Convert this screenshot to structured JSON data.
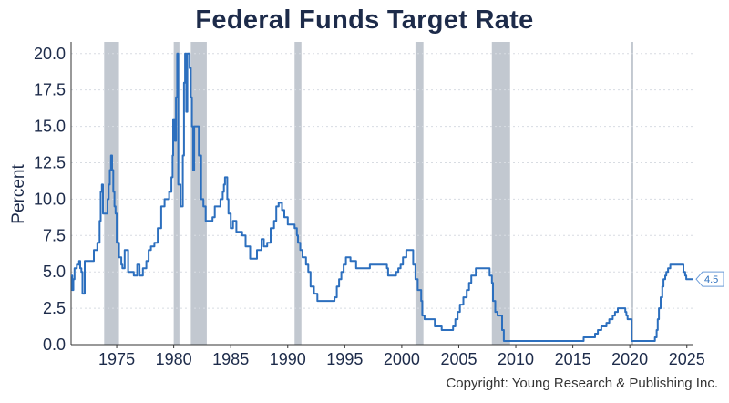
{
  "chart_data": {
    "type": "line",
    "title": "Federal Funds Target Rate",
    "ylabel": "Percent",
    "xlabel": "",
    "copyright": "Copyright: Young Research & Publishing Inc.",
    "xlim": [
      1971.0,
      2025.5
    ],
    "ylim": [
      0,
      20.8
    ],
    "x_ticks": [
      1975,
      1980,
      1985,
      1990,
      1995,
      2000,
      2005,
      2010,
      2015,
      2020,
      2025
    ],
    "y_ticks": [
      0,
      2.5,
      5,
      7.5,
      10,
      12.5,
      15,
      17.5,
      20
    ],
    "y_tick_labels": [
      "0.0",
      "2.5",
      "5.0",
      "7.5",
      "10.0",
      "12.5",
      "15.0",
      "17.5",
      "20.0"
    ],
    "grid": "horizontal dotted",
    "last_value_label": "4.5",
    "colors": {
      "line": "#2c6fbe",
      "recession": "#c2c8d0",
      "axis_text": "#1d2b4a",
      "title": "#1d2b4a"
    },
    "recessions": [
      [
        1973.9,
        1975.2
      ],
      [
        1980.0,
        1980.5
      ],
      [
        1981.5,
        1982.9
      ],
      [
        1990.6,
        1991.2
      ],
      [
        2001.2,
        2001.9
      ],
      [
        2007.9,
        2009.5
      ],
      [
        2020.1,
        2020.3
      ]
    ],
    "series": [
      {
        "type": "step",
        "points": [
          [
            1971.0,
            4.75
          ],
          [
            1971.1,
            3.75
          ],
          [
            1971.2,
            4.5
          ],
          [
            1971.3,
            5.25
          ],
          [
            1971.5,
            5.5
          ],
          [
            1971.7,
            5.75
          ],
          [
            1971.8,
            5.25
          ],
          [
            1971.9,
            5.0
          ],
          [
            1972.0,
            3.5
          ],
          [
            1972.2,
            5.75
          ],
          [
            1972.8,
            5.75
          ],
          [
            1973.0,
            6.5
          ],
          [
            1973.3,
            7.0
          ],
          [
            1973.5,
            8.5
          ],
          [
            1973.6,
            10.5
          ],
          [
            1973.7,
            11.0
          ],
          [
            1973.8,
            9.0
          ],
          [
            1974.2,
            10.0
          ],
          [
            1974.3,
            11.0
          ],
          [
            1974.4,
            12.0
          ],
          [
            1974.5,
            13.0
          ],
          [
            1974.6,
            12.0
          ],
          [
            1974.7,
            10.5
          ],
          [
            1974.8,
            9.5
          ],
          [
            1974.9,
            9.0
          ],
          [
            1975.0,
            7.0
          ],
          [
            1975.2,
            6.0
          ],
          [
            1975.4,
            5.5
          ],
          [
            1975.5,
            5.25
          ],
          [
            1975.7,
            6.5
          ],
          [
            1976.0,
            5.0
          ],
          [
            1976.5,
            4.75
          ],
          [
            1976.8,
            5.5
          ],
          [
            1977.0,
            4.75
          ],
          [
            1977.3,
            5.25
          ],
          [
            1977.6,
            5.75
          ],
          [
            1977.8,
            6.5
          ],
          [
            1978.0,
            6.75
          ],
          [
            1978.3,
            7.0
          ],
          [
            1978.6,
            8.0
          ],
          [
            1978.9,
            9.5
          ],
          [
            1979.2,
            10.0
          ],
          [
            1979.6,
            10.5
          ],
          [
            1979.8,
            11.5
          ],
          [
            1979.9,
            13.0
          ],
          [
            1979.95,
            15.5
          ],
          [
            1980.1,
            14.0
          ],
          [
            1980.2,
            17.0
          ],
          [
            1980.3,
            20.0
          ],
          [
            1980.4,
            11.0
          ],
          [
            1980.6,
            9.5
          ],
          [
            1980.8,
            13.0
          ],
          [
            1980.9,
            18.0
          ],
          [
            1981.0,
            20.0
          ],
          [
            1981.1,
            16.0
          ],
          [
            1981.2,
            20.0
          ],
          [
            1981.4,
            19.0
          ],
          [
            1981.5,
            17.0
          ],
          [
            1981.6,
            15.0
          ],
          [
            1981.7,
            12.0
          ],
          [
            1981.8,
            15.0
          ],
          [
            1982.2,
            13.0
          ],
          [
            1982.4,
            10.0
          ],
          [
            1982.6,
            9.5
          ],
          [
            1982.8,
            8.5
          ],
          [
            1983.4,
            8.75
          ],
          [
            1983.6,
            9.5
          ],
          [
            1984.1,
            10.0
          ],
          [
            1984.3,
            10.5
          ],
          [
            1984.4,
            11.0
          ],
          [
            1984.5,
            11.5
          ],
          [
            1984.7,
            10.0
          ],
          [
            1984.8,
            9.0
          ],
          [
            1985.0,
            8.0
          ],
          [
            1985.2,
            8.5
          ],
          [
            1985.5,
            7.75
          ],
          [
            1986.0,
            7.5
          ],
          [
            1986.3,
            6.75
          ],
          [
            1986.7,
            5.9
          ],
          [
            1987.3,
            6.5
          ],
          [
            1987.7,
            7.25
          ],
          [
            1987.9,
            6.75
          ],
          [
            1988.2,
            7.0
          ],
          [
            1988.5,
            8.0
          ],
          [
            1988.8,
            8.5
          ],
          [
            1989.0,
            9.5
          ],
          [
            1989.2,
            9.75
          ],
          [
            1989.5,
            9.25
          ],
          [
            1989.7,
            8.75
          ],
          [
            1990.0,
            8.25
          ],
          [
            1990.6,
            8.0
          ],
          [
            1990.8,
            7.5
          ],
          [
            1990.9,
            7.0
          ],
          [
            1991.1,
            6.5
          ],
          [
            1991.3,
            6.0
          ],
          [
            1991.6,
            5.5
          ],
          [
            1991.8,
            5.0
          ],
          [
            1992.0,
            4.0
          ],
          [
            1992.3,
            3.5
          ],
          [
            1992.6,
            3.0
          ],
          [
            1994.1,
            3.25
          ],
          [
            1994.3,
            4.0
          ],
          [
            1994.5,
            4.5
          ],
          [
            1994.7,
            5.0
          ],
          [
            1994.9,
            5.5
          ],
          [
            1995.1,
            6.0
          ],
          [
            1995.5,
            5.75
          ],
          [
            1996.0,
            5.25
          ],
          [
            1997.2,
            5.5
          ],
          [
            1998.7,
            5.25
          ],
          [
            1998.8,
            4.75
          ],
          [
            1999.5,
            5.0
          ],
          [
            1999.7,
            5.25
          ],
          [
            1999.9,
            5.5
          ],
          [
            2000.1,
            6.0
          ],
          [
            2000.4,
            6.5
          ],
          [
            2001.0,
            5.5
          ],
          [
            2001.2,
            4.5
          ],
          [
            2001.4,
            3.75
          ],
          [
            2001.7,
            3.0
          ],
          [
            2001.8,
            2.0
          ],
          [
            2002.0,
            1.75
          ],
          [
            2002.9,
            1.25
          ],
          [
            2003.5,
            1.0
          ],
          [
            2004.5,
            1.25
          ],
          [
            2004.7,
            1.75
          ],
          [
            2004.9,
            2.25
          ],
          [
            2005.1,
            2.75
          ],
          [
            2005.4,
            3.25
          ],
          [
            2005.7,
            3.75
          ],
          [
            2005.9,
            4.25
          ],
          [
            2006.1,
            4.75
          ],
          [
            2006.5,
            5.25
          ],
          [
            2007.7,
            4.75
          ],
          [
            2007.9,
            4.25
          ],
          [
            2008.0,
            3.0
          ],
          [
            2008.2,
            2.25
          ],
          [
            2008.4,
            2.0
          ],
          [
            2008.8,
            1.0
          ],
          [
            2008.95,
            0.25
          ],
          [
            2015.95,
            0.5
          ],
          [
            2016.95,
            0.75
          ],
          [
            2017.2,
            1.0
          ],
          [
            2017.5,
            1.25
          ],
          [
            2017.95,
            1.5
          ],
          [
            2018.2,
            1.75
          ],
          [
            2018.5,
            2.0
          ],
          [
            2018.7,
            2.25
          ],
          [
            2018.95,
            2.5
          ],
          [
            2019.6,
            2.25
          ],
          [
            2019.7,
            2.0
          ],
          [
            2019.8,
            1.75
          ],
          [
            2020.15,
            0.25
          ],
          [
            2022.2,
            0.5
          ],
          [
            2022.35,
            1.0
          ],
          [
            2022.45,
            1.75
          ],
          [
            2022.55,
            2.5
          ],
          [
            2022.7,
            3.25
          ],
          [
            2022.85,
            4.0
          ],
          [
            2022.95,
            4.5
          ],
          [
            2023.1,
            4.75
          ],
          [
            2023.2,
            5.0
          ],
          [
            2023.35,
            5.25
          ],
          [
            2023.55,
            5.5
          ],
          [
            2024.7,
            5.0
          ],
          [
            2024.85,
            4.75
          ],
          [
            2024.95,
            4.5
          ],
          [
            2025.5,
            4.5
          ]
        ]
      }
    ]
  }
}
